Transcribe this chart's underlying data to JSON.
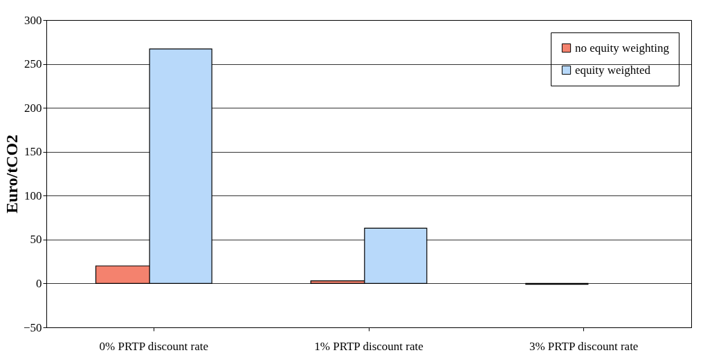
{
  "chart_data": {
    "type": "bar",
    "ylabel": "Euro/tCO2",
    "categories": [
      "0% PRTP discount rate",
      "1% PRTP discount rate",
      "3% PRTP discount rate"
    ],
    "series": [
      {
        "name": "no equity weighting",
        "color": "#f4826e",
        "values": [
          20,
          3,
          -1
        ]
      },
      {
        "name": "equity weighted",
        "color": "#b8d9fa",
        "values": [
          267,
          63,
          null
        ]
      }
    ],
    "ylim": [
      -50,
      300
    ],
    "yticks": [
      -50,
      0,
      50,
      100,
      150,
      200,
      250,
      300
    ],
    "grid": "y",
    "legend": "top right"
  }
}
